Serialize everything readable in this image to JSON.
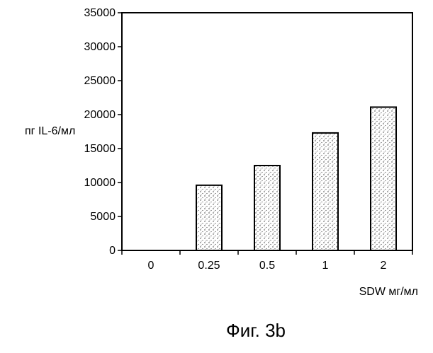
{
  "chart_data": {
    "type": "bar",
    "categories": [
      "0",
      "0.25",
      "0.5",
      "1",
      "2"
    ],
    "values": [
      0,
      9600,
      12500,
      17300,
      21100
    ],
    "title": "",
    "xlabel": "SDW мг/мл",
    "ylabel": "пг IL-6/мл",
    "ylim": [
      0,
      35000
    ],
    "yticks": [
      "0",
      "5000",
      "10000",
      "15000",
      "20000",
      "25000",
      "30000",
      "35000"
    ],
    "grid": false,
    "bar_fill": "stippled"
  },
  "caption": "Фиг. 3b"
}
